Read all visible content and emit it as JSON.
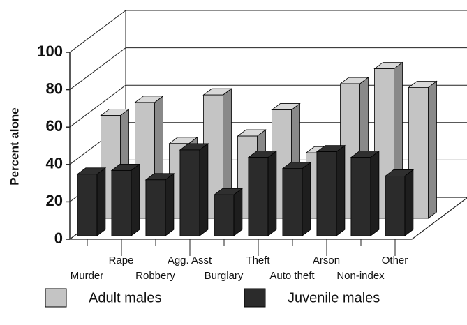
{
  "chart_data": {
    "type": "bar3d",
    "y_label": "Percent alone",
    "categories": [
      "Murder",
      "Rape",
      "Robbery",
      "Agg. Asst",
      "Burglary",
      "Theft",
      "Auto theft",
      "Arson",
      "Non-index",
      "Other"
    ],
    "series": [
      {
        "name": "Adult males",
        "color": "#c4c4c4",
        "values": [
          55,
          62,
          40,
          66,
          44,
          58,
          35,
          72,
          80,
          70
        ]
      },
      {
        "name": "Juvenile males",
        "color": "#2b2b2b",
        "values": [
          33,
          35,
          30,
          46,
          22,
          42,
          36,
          45,
          42,
          32
        ]
      }
    ],
    "ylim": [
      0,
      100
    ],
    "yticks": [
      0,
      20,
      40,
      60,
      80,
      100
    ],
    "grid": true
  }
}
